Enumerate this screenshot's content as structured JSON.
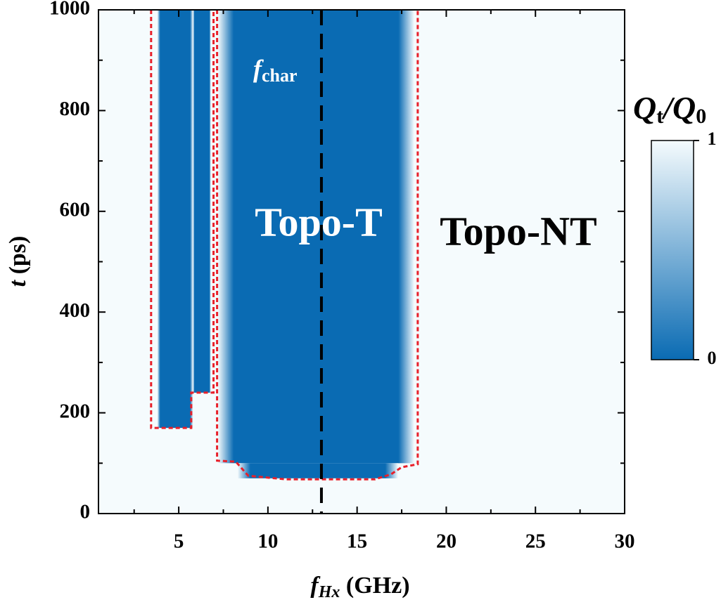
{
  "chart_data": {
    "type": "heatmap",
    "xlabel": [
      "f",
      "Hx",
      " (GHz)"
    ],
    "ylabel": [
      "t",
      " (ps)"
    ],
    "xlim": [
      0.5,
      30
    ],
    "xticks": [
      5,
      10,
      15,
      20,
      25,
      30
    ],
    "xminorticks": [
      2.5,
      7.5,
      12.5,
      17.5,
      22.5,
      27.5
    ],
    "ylim": [
      0,
      1000
    ],
    "yticks": [
      0,
      200,
      400,
      600,
      800,
      1000
    ],
    "yminorticks": [
      100,
      300,
      500,
      700,
      900
    ],
    "background_value": 1,
    "regions": [
      {
        "x": [
          3.8,
          5.8
        ],
        "t": [
          170,
          1000
        ],
        "value": 0
      },
      {
        "x": [
          5.8,
          6.8
        ],
        "t": [
          240,
          1000
        ],
        "value": 0
      },
      {
        "x": [
          7.2,
          18.2
        ],
        "t": [
          100,
          1000
        ],
        "value": 0
      },
      {
        "x": [
          8.3,
          17.3
        ],
        "t": [
          70,
          100
        ],
        "value": 0
      }
    ],
    "boundary": {
      "color": "#e8202a",
      "x": [
        3.45,
        3.45,
        5.7,
        5.7,
        6.95,
        6.95,
        null,
        7.15,
        7.15,
        8.2,
        8.9,
        11,
        16,
        16.9,
        17.5,
        18.4,
        18.4
      ],
      "values": [
        1000,
        170,
        170,
        240,
        240,
        1000,
        null,
        1000,
        105,
        103,
        75,
        68,
        68,
        78,
        92,
        98,
        1000
      ]
    },
    "vline": {
      "x": 13,
      "color": "#000000"
    },
    "annotations": {
      "fchar": [
        "f",
        "char"
      ],
      "topo_t": "Topo-T",
      "topo_nt": "Topo-NT"
    },
    "colorbar": {
      "title": [
        "Q",
        "t",
        "/Q",
        "0"
      ],
      "lim": [
        0,
        1
      ],
      "ticks": [
        0,
        1
      ],
      "colors": [
        "#0a6bb3",
        "#f5fbfd"
      ]
    }
  }
}
